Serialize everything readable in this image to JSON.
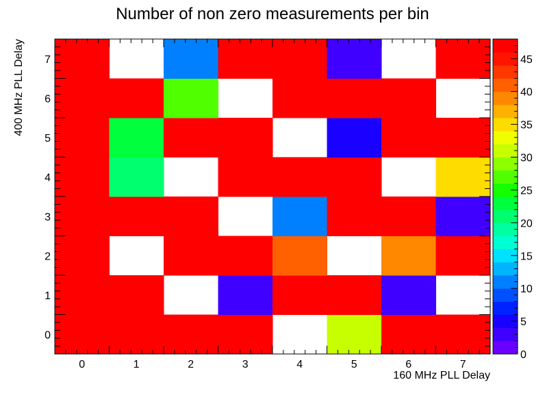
{
  "chart_data": {
    "type": "heatmap",
    "title": "Number of non zero measurements per bin",
    "xlabel": "160 MHz PLL Delay",
    "ylabel": "400 MHz PLL Delay",
    "x_categories": [
      "0",
      "1",
      "2",
      "3",
      "4",
      "5",
      "6",
      "7"
    ],
    "y_categories": [
      "0",
      "1",
      "2",
      "3",
      "4",
      "5",
      "6",
      "7"
    ],
    "zlim": [
      0,
      48
    ],
    "z_ticks": [
      "0",
      "5",
      "10",
      "15",
      "20",
      "25",
      "30",
      "35",
      "40",
      "45"
    ],
    "empty_value_note": null,
    "values": [
      [
        48,
        48,
        48,
        48,
        null,
        30,
        48,
        48
      ],
      [
        48,
        48,
        null,
        2,
        48,
        48,
        2,
        null
      ],
      [
        48,
        null,
        48,
        48,
        41,
        null,
        39,
        48
      ],
      [
        48,
        48,
        48,
        null,
        11,
        48,
        48,
        2
      ],
      [
        48,
        20,
        null,
        48,
        48,
        46,
        null,
        35
      ],
      [
        48,
        23,
        48,
        48,
        null,
        5,
        48,
        48
      ],
      [
        48,
        48,
        26,
        null,
        48,
        48,
        48,
        null
      ],
      [
        48,
        null,
        11,
        48,
        48,
        2,
        null,
        48
      ]
    ],
    "palette": [
      "#6b00ff",
      "#3f00ff",
      "#1a00ff",
      "#0022ff",
      "#0050ff",
      "#0080ff",
      "#00b4ff",
      "#00e0ff",
      "#00ffd2",
      "#00ffa0",
      "#00ff6e",
      "#00ff3c",
      "#14ff00",
      "#50ff00",
      "#8cff00",
      "#c8ff00",
      "#f0ff00",
      "#ffdc00",
      "#ffb000",
      "#ff8800",
      "#ff6000",
      "#ff3800",
      "#ff1400",
      "#ff0000"
    ],
    "grid": false
  }
}
